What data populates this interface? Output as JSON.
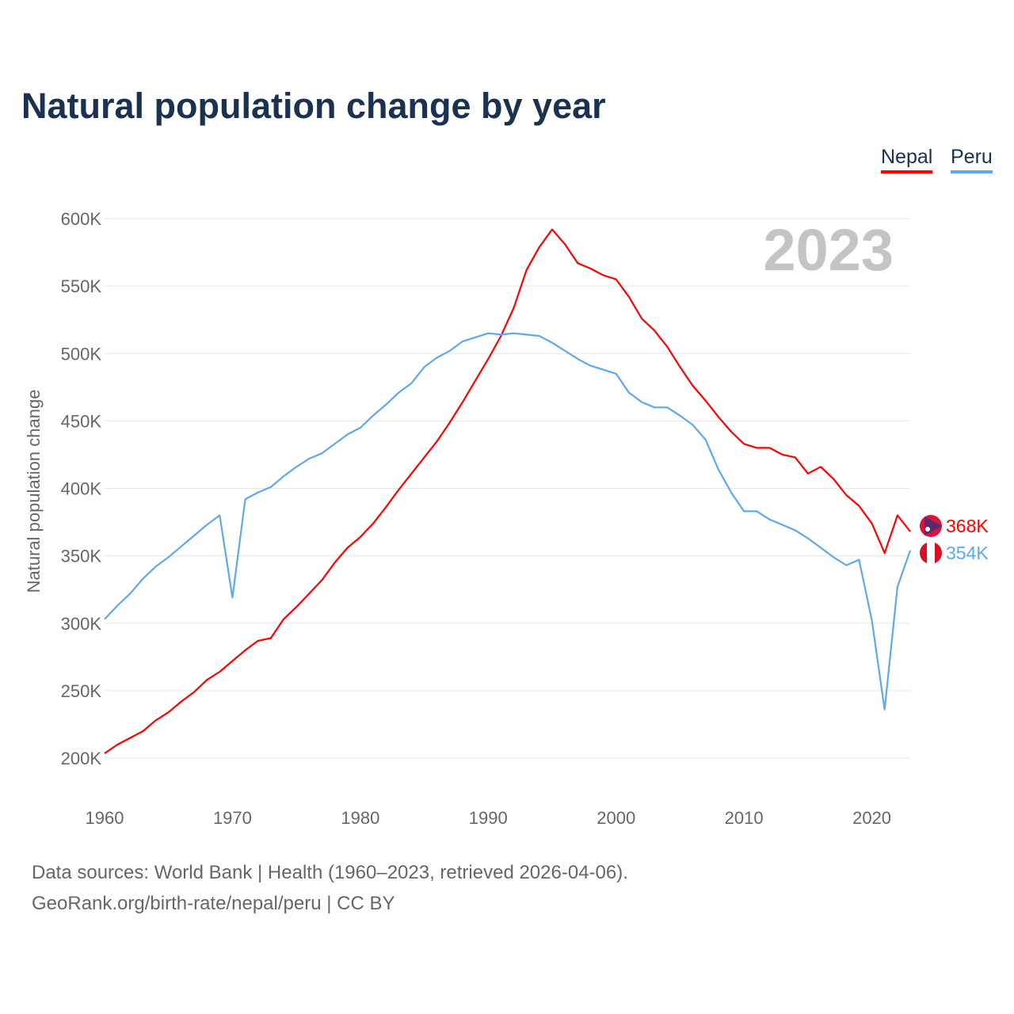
{
  "title": "Natural population change by year",
  "legend": [
    {
      "name": "Nepal",
      "color": "#ff0000"
    },
    {
      "name": "Peru",
      "color": "#5fa8ee"
    }
  ],
  "footer": {
    "line1": "Data sources: World Bank | Health (1960–2023, retrieved 2026-04-06).",
    "line2": "GeoRank.org/birth-rate/nepal/peru | CC BY"
  },
  "chart_data": {
    "type": "line",
    "title": "Natural population change by year",
    "xlabel": "",
    "ylabel": "Natural population change",
    "year_label": "2023",
    "xlim": [
      1960,
      2023
    ],
    "ylim": [
      200000,
      600000
    ],
    "x_ticks": [
      "1960",
      "1970",
      "1980",
      "1990",
      "2000",
      "2010",
      "2020"
    ],
    "y_ticks": [
      "200K",
      "250K",
      "300K",
      "350K",
      "400K",
      "450K",
      "500K",
      "550K",
      "600K"
    ],
    "grid": true,
    "legend_position": "top-right",
    "x": [
      1960,
      1961,
      1962,
      1963,
      1964,
      1965,
      1966,
      1967,
      1968,
      1969,
      1970,
      1971,
      1972,
      1973,
      1974,
      1975,
      1976,
      1977,
      1978,
      1979,
      1980,
      1981,
      1982,
      1983,
      1984,
      1985,
      1986,
      1987,
      1988,
      1989,
      1990,
      1991,
      1992,
      1993,
      1994,
      1995,
      1996,
      1997,
      1998,
      1999,
      2000,
      2001,
      2002,
      2003,
      2004,
      2005,
      2006,
      2007,
      2008,
      2009,
      2010,
      2011,
      2012,
      2013,
      2014,
      2015,
      2016,
      2017,
      2018,
      2019,
      2020,
      2021,
      2022,
      2023
    ],
    "series": [
      {
        "name": "Nepal",
        "color": "#ff0000",
        "end_label": "368K",
        "values": [
          203.5,
          210,
          215,
          220,
          228,
          234,
          242,
          249,
          258,
          264,
          272,
          280,
          287,
          289,
          303,
          312,
          322,
          332,
          345,
          356,
          364,
          374,
          386,
          399,
          411,
          423,
          435,
          449,
          464,
          480,
          496,
          513,
          534,
          562,
          579,
          592,
          581,
          567,
          563,
          558,
          555,
          542,
          526,
          517,
          505,
          490,
          476,
          465,
          453,
          442,
          433,
          430,
          430,
          425,
          423,
          411,
          416,
          407,
          395,
          387,
          374,
          352,
          380,
          368
        ]
      },
      {
        "name": "Peru",
        "color": "#5fa8ee",
        "end_label": "354K",
        "values": [
          303,
          313,
          322,
          333,
          342,
          349,
          357,
          365,
          373,
          380,
          319,
          392,
          397,
          401,
          409,
          416,
          422,
          426,
          433,
          440,
          445,
          454,
          462,
          471,
          478,
          490,
          497,
          502,
          509,
          512,
          515,
          514,
          515,
          514,
          513,
          508,
          502,
          496,
          491,
          488,
          485,
          471,
          464,
          460,
          460,
          454,
          447,
          436,
          414,
          397,
          383,
          383,
          377,
          373,
          369,
          363,
          356,
          349,
          343,
          347,
          302,
          236,
          327,
          354
        ]
      }
    ],
    "value_unit": "thousands"
  }
}
